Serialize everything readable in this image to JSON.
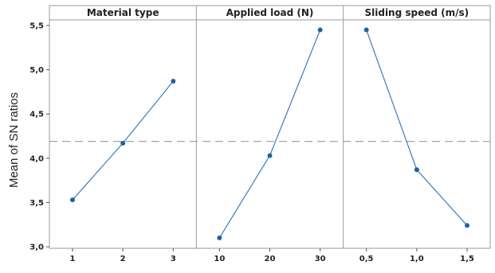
{
  "chart_data": {
    "type": "line",
    "ylabel": "Mean of SN ratios",
    "ylim": [
      2.95,
      5.6
    ],
    "yticks": [
      3.0,
      3.5,
      4.0,
      4.5,
      5.0,
      5.5
    ],
    "ytick_labels": [
      "3,0",
      "3,5",
      "4,0",
      "4,5",
      "5,0",
      "5,5"
    ],
    "reference_line": 4.19,
    "grid": false,
    "line_color": "#3b7cc0",
    "point_color": "#1f5fa8",
    "reference_line_color": "#9a9a9a",
    "panels": [
      {
        "title": "Material type",
        "categories": [
          "1",
          "2",
          "3"
        ],
        "values": [
          3.53,
          4.17,
          4.87
        ]
      },
      {
        "title": "Applied load (N)",
        "categories": [
          "10",
          "20",
          "30"
        ],
        "values": [
          3.1,
          4.03,
          5.45
        ]
      },
      {
        "title": "Sliding speed (m/s)",
        "categories": [
          "0,5",
          "1,0",
          "1,5"
        ],
        "values": [
          5.45,
          3.87,
          3.24
        ]
      }
    ]
  }
}
